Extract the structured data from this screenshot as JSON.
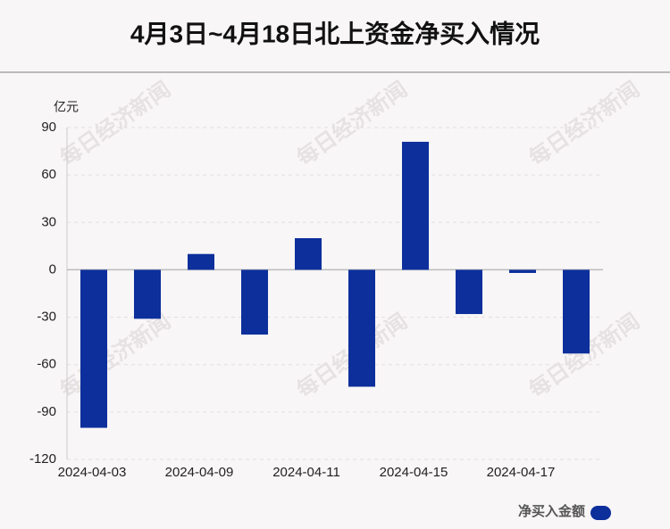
{
  "chart_data": {
    "type": "bar",
    "title": "4月3日~4月18日北上资金净买入情况",
    "y_label": "亿元",
    "watermark": "每日经济新闻",
    "categories": [
      "2024-04-03",
      null,
      "2024-04-09",
      null,
      "2024-04-11",
      null,
      "2024-04-15",
      null,
      "2024-04-17",
      null
    ],
    "series": [
      {
        "name": "净买入金额",
        "color": "#0d2f9c",
        "values": [
          -100,
          -31,
          10,
          -41,
          20,
          -74,
          81,
          -28,
          -2,
          -53
        ]
      }
    ],
    "ylim": [
      -120,
      90
    ],
    "yticks": [
      -120,
      -90,
      -60,
      -30,
      0,
      30,
      60,
      90
    ],
    "grid": true,
    "legend": "bottom-right"
  }
}
